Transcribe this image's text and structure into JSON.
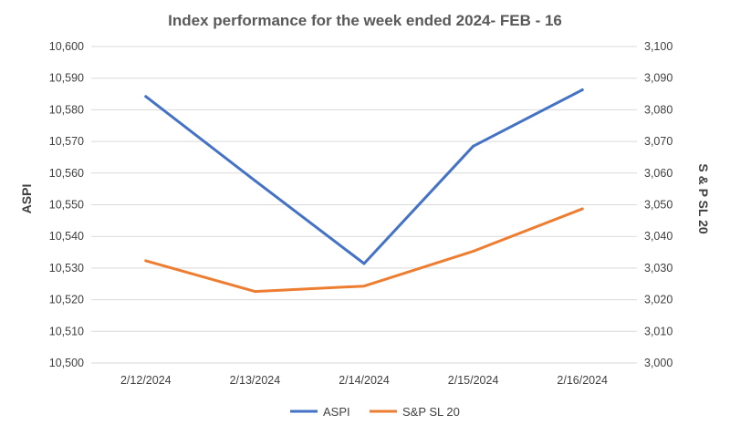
{
  "chart_data": {
    "type": "line",
    "title": "Index performance for the week ended 2024- FEB - 16",
    "categories": [
      "2/12/2024",
      "2/13/2024",
      "2/14/2024",
      "2/15/2024",
      "2/16/2024"
    ],
    "y_left": {
      "label": "ASPI",
      "min": 10500,
      "max": 10600,
      "ticks": [
        "10,500",
        "10,510",
        "10,520",
        "10,530",
        "10,540",
        "10,550",
        "10,560",
        "10,570",
        "10,580",
        "10,590",
        "10,600"
      ]
    },
    "y_right": {
      "label": "S & P SL 20",
      "min": 3000,
      "max": 3100,
      "ticks": [
        "3,000",
        "3,010",
        "3,020",
        "3,030",
        "3,040",
        "3,050",
        "3,060",
        "3,070",
        "3,080",
        "3,090",
        "3,100"
      ]
    },
    "series": [
      {
        "name": "ASPI",
        "axis": "left",
        "color": "#4472C4",
        "values": [
          10584.2,
          10557.6,
          10531.4,
          10568.5,
          10586.3
        ]
      },
      {
        "name": "S&P SL 20",
        "axis": "right",
        "color": "#ED7D31",
        "values": [
          3032.3,
          3022.6,
          3024.3,
          3035.3,
          3048.7
        ]
      }
    ],
    "grid": true,
    "legend": "bottom"
  }
}
